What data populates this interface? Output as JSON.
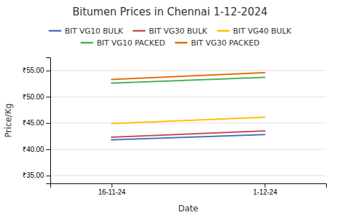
{
  "chart_data": {
    "type": "line",
    "title": "Bitumen Prices in Chennai 1-12-2024",
    "xlabel": "Date",
    "ylabel": "Price/Kg",
    "categories": [
      "16-11-24",
      "1-12-24"
    ],
    "series": [
      {
        "name": "BIT VG10 BULK",
        "color": "#4472C4",
        "values": [
          41.8,
          42.8
        ]
      },
      {
        "name": "BIT VG30 BULK",
        "color": "#C0504D",
        "values": [
          42.3,
          43.5
        ]
      },
      {
        "name": "BIT VG40 BULK",
        "color": "#FFC000",
        "values": [
          44.9,
          46.1
        ]
      },
      {
        "name": "BIT VG10 PACKED",
        "color": "#4CAF50",
        "values": [
          52.6,
          53.7
        ]
      },
      {
        "name": "BIT VG30 PACKED",
        "color": "#E36C09",
        "values": [
          53.3,
          54.6
        ]
      }
    ],
    "ylim": [
      33.5,
      57.5
    ],
    "yticks": [
      {
        "value": 35.0,
        "label": "₹35.00"
      },
      {
        "value": 40.0,
        "label": "₹40.00"
      },
      {
        "value": 45.0,
        "label": "₹45.00"
      },
      {
        "value": 50.0,
        "label": "₹50.00"
      },
      {
        "value": 55.0,
        "label": "₹55.00"
      }
    ],
    "grid": true,
    "legend": "top"
  }
}
